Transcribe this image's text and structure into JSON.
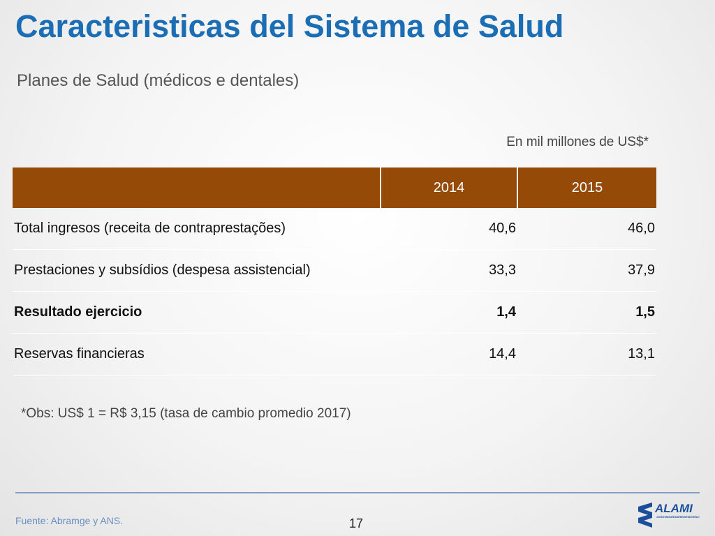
{
  "header": {
    "title": "Caracteristicas del Sistema de Salud",
    "subtitle": "Planes de Salud (médicos e dentales)",
    "unit_note": "En mil millones de US$*"
  },
  "table": {
    "columns": [
      "2014",
      "2015"
    ],
    "rows": [
      [
        "Total ingresos (receita de contraprestações)",
        "40,6",
        "46,0"
      ],
      [
        "Prestaciones y subsídios (despesa assistencial)",
        "33,3",
        "37,9"
      ],
      [
        "Resultado ejercicio",
        "1,4",
        "1,5"
      ],
      [
        "Reservas financieras",
        "14,4",
        "13,1"
      ]
    ]
  },
  "note": "*Obs: US$ 1 = R$ 3,15 (tasa de cambio promedio 2017)",
  "footer": {
    "source": "Fuente: Abramge y ANS.",
    "page": "17",
    "logo": "ALAMI",
    "logo_caption": "ASOCIACIÓN LATINOAMERICANA DE SISTEMAS PRIVADOS DE SALUD"
  }
}
